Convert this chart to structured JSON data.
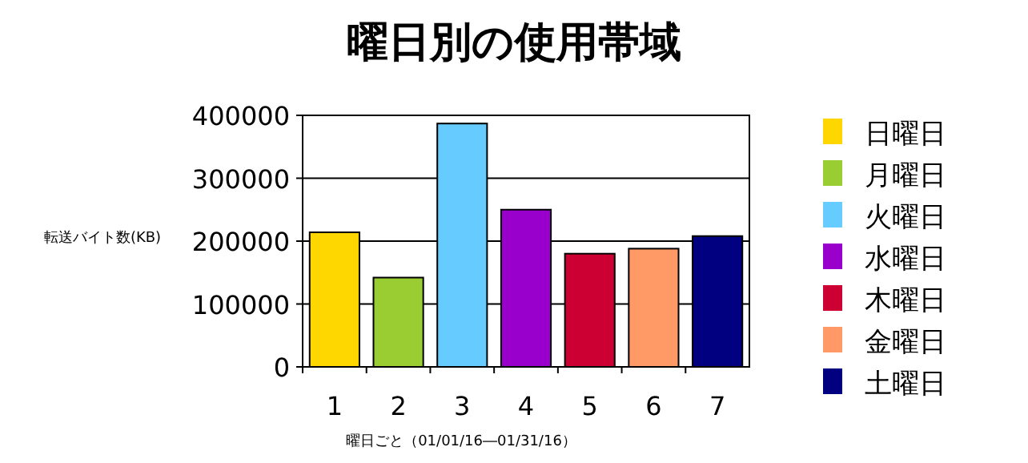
{
  "chart_data": {
    "type": "bar",
    "title": "曜日別の使用帯域",
    "xlabel": "曜日ごと（01/01/16―01/31/16）",
    "ylabel": "転送バイト数(KB)",
    "categories": [
      "1",
      "2",
      "3",
      "4",
      "5",
      "6",
      "7"
    ],
    "series": [
      {
        "name": "日曜日",
        "color": "#ffd700",
        "values": [
          214000,
          null,
          null,
          null,
          null,
          null,
          null
        ]
      },
      {
        "name": "月曜日",
        "color": "#9acd32",
        "values": [
          null,
          142000,
          null,
          null,
          null,
          null,
          null
        ]
      },
      {
        "name": "火曜日",
        "color": "#66ccff",
        "values": [
          null,
          null,
          387000,
          null,
          null,
          null,
          null
        ]
      },
      {
        "name": "水曜日",
        "color": "#9900cc",
        "values": [
          null,
          null,
          null,
          250000,
          null,
          null,
          null
        ]
      },
      {
        "name": "木曜日",
        "color": "#cc0033",
        "values": [
          null,
          null,
          null,
          null,
          180000,
          null,
          null
        ]
      },
      {
        "name": "金曜日",
        "color": "#ff9966",
        "values": [
          null,
          null,
          null,
          null,
          null,
          188000,
          null
        ]
      },
      {
        "name": "土曜日",
        "color": "#000080",
        "values": [
          null,
          null,
          null,
          null,
          null,
          null,
          208000
        ]
      }
    ],
    "ylim": [
      0,
      400000
    ],
    "yticks": [
      0,
      100000,
      200000,
      300000,
      400000
    ],
    "grid": "y",
    "legend": "right"
  }
}
